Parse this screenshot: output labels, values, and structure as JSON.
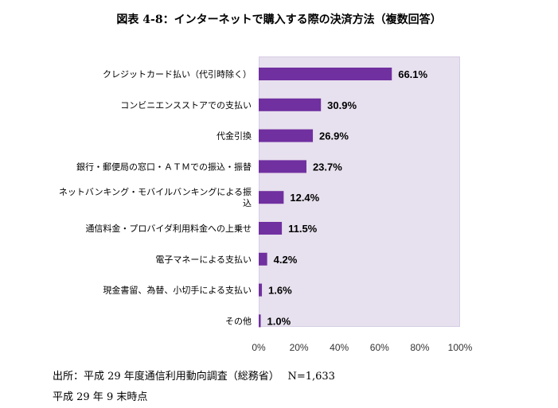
{
  "title": "図表 4-8：インターネットで購入する際の決済方法（複数回答）",
  "chart_data": {
    "type": "bar",
    "orientation": "horizontal",
    "categories": [
      "クレジットカード払い（代引時除く）",
      "コンビニエンスストアでの支払い",
      "代金引換",
      "銀行・郵便局の窓口・ＡＴＭでの振込・振替",
      "ネットバンキング・モバイルバンキングによる振込",
      "通信料金・プロバイダ利用料金への上乗せ",
      "電子マネーによる支払い",
      "現金書留、為替、小切手による支払い",
      "その他"
    ],
    "category_lines": [
      [
        "クレジットカード払い（代引時除く）"
      ],
      [
        "コンビニエンスストアでの支払い"
      ],
      [
        "代金引換"
      ],
      [
        "銀行・郵便局の窓口・ＡＴＭでの振込・振替"
      ],
      [
        "ネットバンキング・モバイルバンキングによる振",
        "込"
      ],
      [
        "通信料金・プロバイダ利用料金への上乗せ"
      ],
      [
        "電子マネーによる支払い"
      ],
      [
        "現金書留、為替、小切手による支払い"
      ],
      [
        "その他"
      ]
    ],
    "values": [
      66.1,
      30.9,
      26.9,
      23.7,
      12.4,
      11.5,
      4.2,
      1.6,
      1.0
    ],
    "value_labels": [
      "66.1%",
      "30.9%",
      "26.9%",
      "23.7%",
      "12.4%",
      "11.5%",
      "4.2%",
      "1.6%",
      "1.0%"
    ],
    "xlim": [
      0,
      100
    ],
    "xticks": [
      "0%",
      "20%",
      "40%",
      "60%",
      "80%",
      "100%"
    ],
    "grid": false,
    "bar_color": "#7030a0",
    "plot_bg_color": "#e7e0ee"
  },
  "footnotes": {
    "source": "出所：平成 29 年度通信利用動向調査（総務省）　 N=1,633",
    "date": "平成 29 年 9 末時点"
  }
}
